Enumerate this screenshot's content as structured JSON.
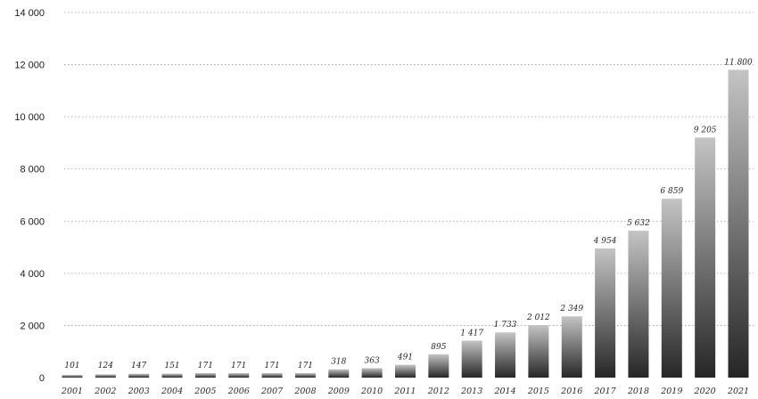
{
  "chart_data": {
    "type": "bar",
    "title": "",
    "xlabel": "",
    "ylabel": "",
    "categories": [
      "2001",
      "2002",
      "2003",
      "2004",
      "2005",
      "2006",
      "2007",
      "2008",
      "2009",
      "2010",
      "2011",
      "2012",
      "2013",
      "2014",
      "2015",
      "2016",
      "2017",
      "2018",
      "2019",
      "2020",
      "2021"
    ],
    "values": [
      101,
      124,
      147,
      151,
      171,
      171,
      171,
      171,
      318,
      363,
      491,
      895,
      1417,
      1733,
      2012,
      2349,
      4954,
      5632,
      6859,
      9205,
      11800
    ],
    "value_labels": [
      "101",
      "124",
      "147",
      "151",
      "171",
      "171",
      "171",
      "171",
      "318",
      "363",
      "491",
      "895",
      "1 417",
      "1 733",
      "2 012",
      "2 349",
      "4 954",
      "5 632",
      "6 859",
      "9 205",
      "11 800"
    ],
    "y_ticks": [
      0,
      2000,
      4000,
      6000,
      8000,
      10000,
      12000,
      14000
    ],
    "y_tick_labels": [
      "0",
      "2 000",
      "4 000",
      "6 000",
      "8 000",
      "10 000",
      "12 000",
      "14 000"
    ],
    "ylim": [
      0,
      14000
    ],
    "grid": true,
    "legend": "none",
    "colors": {
      "bar_top": "#c4c4c4",
      "bar_bottom": "#262626",
      "grid": "#9a9a9a"
    }
  }
}
